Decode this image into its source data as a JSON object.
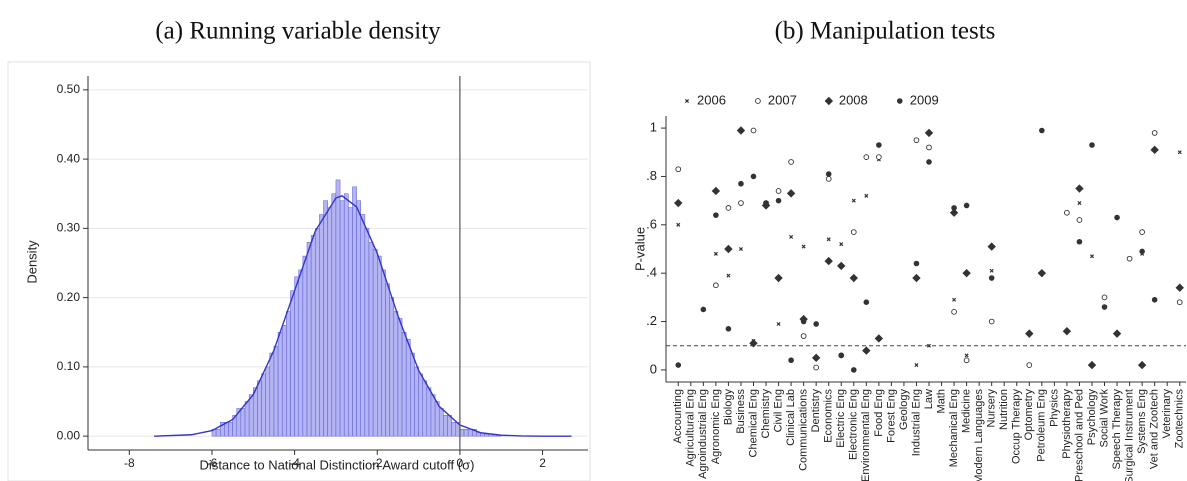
{
  "chart_data": [
    {
      "type": "histogram",
      "title": "(a) Running variable density",
      "x_label": "Distance to National Distinction Award cutoff (σ)",
      "y_label": "Density",
      "bins": [
        -6,
        -5.9,
        -5.8,
        -5.7,
        -5.6,
        -5.5,
        -5.4,
        -5.3,
        -5.2,
        -5.1,
        -5,
        -4.9,
        -4.8,
        -4.7,
        -4.6,
        -4.5,
        -4.4,
        -4.3,
        -4.2,
        -4.1,
        -4,
        -3.9,
        -3.8,
        -3.7,
        -3.6,
        -3.5,
        -3.4,
        -3.3,
        -3.2,
        -3.1,
        -3,
        -2.9,
        -2.8,
        -2.7,
        -2.6,
        -2.5,
        -2.4,
        -2.3,
        -2.2,
        -2.1,
        -2,
        -1.9,
        -1.8,
        -1.7,
        -1.6,
        -1.5,
        -1.4,
        -1.3,
        -1.2,
        -1.1,
        -1,
        -0.9,
        -0.8,
        -0.7,
        -0.6,
        -0.5,
        -0.4,
        -0.3,
        -0.2,
        -0.1,
        0,
        0.1,
        0.2,
        0.3,
        0.4,
        0.5,
        0.6,
        0.7,
        0.8,
        0.9,
        1
      ],
      "values": [
        0.01,
        0.01,
        0.02,
        0.02,
        0.02,
        0.03,
        0.04,
        0.04,
        0.05,
        0.06,
        0.07,
        0.08,
        0.09,
        0.1,
        0.12,
        0.13,
        0.15,
        0.16,
        0.18,
        0.21,
        0.23,
        0.24,
        0.26,
        0.28,
        0.29,
        0.3,
        0.32,
        0.34,
        0.33,
        0.35,
        0.37,
        0.34,
        0.35,
        0.33,
        0.36,
        0.34,
        0.32,
        0.3,
        0.28,
        0.27,
        0.26,
        0.24,
        0.22,
        0.2,
        0.18,
        0.17,
        0.15,
        0.14,
        0.12,
        0.1,
        0.09,
        0.08,
        0.07,
        0.06,
        0.05,
        0.04,
        0.03,
        0.03,
        0.02,
        0.02,
        0.01,
        0.01,
        0.01,
        0.01,
        0.005,
        0.004,
        0.003,
        0.003,
        0.002,
        0.002
      ],
      "color": "#b4b4f2",
      "edge_color": "#5b5bd6",
      "fit": {
        "x": [
          -7.4,
          -6.5,
          -6,
          -5.5,
          -5,
          -4.5,
          -4,
          -3.5,
          -3,
          -2.85,
          -2.5,
          -2,
          -1.5,
          -1,
          -0.5,
          0,
          0.5,
          1,
          1.5,
          2,
          2.7
        ],
        "y": [
          0,
          0.002,
          0.008,
          0.024,
          0.06,
          0.124,
          0.21,
          0.296,
          0.344,
          0.347,
          0.331,
          0.264,
          0.174,
          0.095,
          0.043,
          0.016,
          0.005,
          0.0013,
          0.0003,
          0,
          0
        ],
        "color": "#3535c8"
      },
      "vline": 0,
      "xlim": [
        -9,
        3.1
      ],
      "ylim": [
        -0.02,
        0.52
      ],
      "xticks": [
        -8,
        -6,
        -4,
        -2,
        0,
        2
      ],
      "yticks": [
        {
          "value": 0,
          "label": "0.00"
        },
        {
          "value": 0.1,
          "label": "0.10"
        },
        {
          "value": 0.2,
          "label": "0.20"
        },
        {
          "value": 0.3,
          "label": "0.30"
        },
        {
          "value": 0.4,
          "label": "0.40"
        },
        {
          "value": 0.5,
          "label": "0.50"
        }
      ],
      "grid": true
    },
    {
      "type": "scatter",
      "title": "(b) Manipulation tests",
      "y_label": "P-value",
      "categories": [
        "Accounting",
        "Agricultural Eng",
        "Agroindustrial Eng",
        "Agronomic Eng",
        "Biology",
        "Business",
        "Chemical Eng",
        "Chemistry",
        "Civil Eng",
        "Clinical Lab",
        "Communications",
        "Dentistry",
        "Economics",
        "Electric Eng",
        "Electronic Eng",
        "Environmental Eng",
        "Food Eng",
        "Forest Eng",
        "Geology",
        "Industrial Eng",
        "Law",
        "Math",
        "Mechanical Eng",
        "Medicine",
        "Modern Languages",
        "Nursery",
        "Nutrition",
        "Occup Therapy",
        "Optometry",
        "Petroleum Eng",
        "Physics",
        "Physiotherapy",
        "Preschool and Ped",
        "Psychology",
        "Social Work",
        "Speech Therapy",
        "Surgical Instrument",
        "Systems Eng",
        "Vet and Zootech",
        "Veterinary",
        "Zootechnics"
      ],
      "series": [
        {
          "name": "2006",
          "color": "#333333",
          "marker": "x",
          "values": [
            0.6,
            null,
            null,
            0.48,
            0.39,
            0.5,
            0.12,
            null,
            0.19,
            0.55,
            0.51,
            null,
            0.54,
            0.52,
            0.7,
            0.72,
            0.87,
            null,
            null,
            0.02,
            0.1,
            null,
            0.29,
            0.06,
            null,
            0.41,
            null,
            null,
            null,
            null,
            null,
            null,
            0.69,
            0.47,
            null,
            null,
            null,
            0.48,
            null,
            null,
            0.9
          ]
        },
        {
          "name": "2007",
          "color": "#333333",
          "marker": "circle-open",
          "values": [
            0.83,
            null,
            null,
            0.35,
            0.67,
            0.69,
            0.99,
            0.69,
            0.74,
            0.86,
            0.14,
            0.01,
            0.79,
            0.06,
            0.57,
            0.88,
            0.88,
            null,
            null,
            0.95,
            0.92,
            null,
            0.24,
            0.04,
            null,
            0.2,
            null,
            null,
            0.02,
            null,
            null,
            0.65,
            0.62,
            null,
            0.3,
            null,
            0.46,
            0.57,
            0.98,
            null,
            0.28
          ]
        },
        {
          "name": "2008",
          "color": "#333333",
          "marker": "diamond",
          "values": [
            0.69,
            null,
            null,
            0.74,
            0.5,
            0.99,
            0.11,
            0.68,
            0.38,
            0.73,
            0.21,
            0.05,
            0.45,
            0.43,
            0.38,
            0.08,
            0.13,
            null,
            null,
            0.38,
            0.98,
            null,
            0.65,
            0.4,
            null,
            0.51,
            null,
            null,
            0.15,
            0.4,
            null,
            0.16,
            0.75,
            0.02,
            null,
            0.15,
            null,
            0.02,
            0.91,
            null,
            0.34
          ]
        },
        {
          "name": "2009",
          "color": "#333333",
          "marker": "circle",
          "values": [
            0.02,
            null,
            0.25,
            0.64,
            0.17,
            0.77,
            0.8,
            0.69,
            0.7,
            0.04,
            0.2,
            0.19,
            0.81,
            0.06,
            0,
            0.28,
            0.93,
            null,
            null,
            0.44,
            0.86,
            null,
            0.67,
            0.68,
            null,
            0.38,
            null,
            null,
            null,
            0.99,
            null,
            null,
            0.53,
            0.93,
            0.26,
            0.63,
            null,
            0.49,
            0.29,
            null,
            null
          ]
        }
      ],
      "hline": 0.1,
      "ylim": [
        -0.05,
        1.05
      ],
      "yticks": [
        0,
        {
          "value": 0.2,
          "label": ".2"
        },
        {
          "value": 0.4,
          "label": ".4"
        },
        {
          "value": 0.6,
          "label": ".6"
        },
        {
          "value": 0.8,
          "label": ".8"
        },
        1
      ],
      "legend": "top-left",
      "grid": false
    }
  ]
}
